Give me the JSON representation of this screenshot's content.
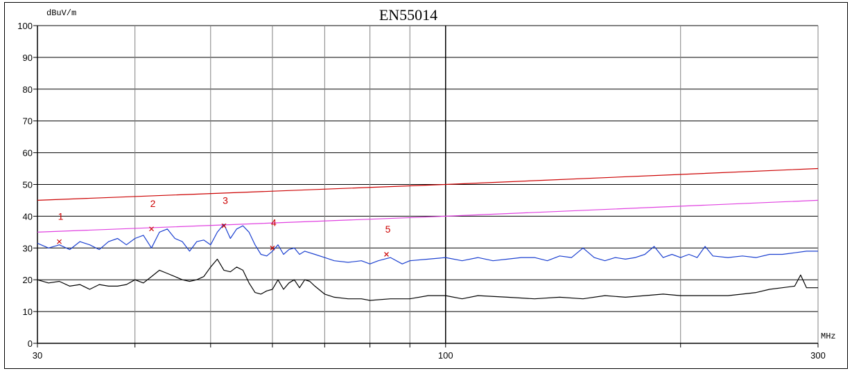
{
  "chart_data": {
    "type": "line",
    "title": "EN55014",
    "ylabel": "dBuV/m",
    "xlabel": "MHz",
    "x_scale": "log",
    "xlim": [
      30,
      300
    ],
    "ylim": [
      0,
      100
    ],
    "grid": true,
    "y_ticks": [
      0,
      10,
      20,
      30,
      40,
      50,
      60,
      70,
      80,
      90,
      100
    ],
    "y_tick_labels": [
      "0",
      "10",
      "20",
      "30",
      "40",
      "50",
      "60",
      "70",
      "80",
      "90",
      "100"
    ],
    "x_tick_labels": [
      {
        "x": 30,
        "label": "30"
      },
      {
        "x": 100,
        "label": "100"
      },
      {
        "x": 300,
        "label": "300"
      }
    ],
    "x_gridlines": [
      30,
      40,
      50,
      60,
      70,
      80,
      90,
      100,
      200,
      300
    ],
    "colors": {
      "limit": "#cc0000",
      "margin_limit": "#e040e0",
      "peak": "#1a3fd0",
      "average": "#000000",
      "marker": "#cc0000"
    },
    "series": [
      {
        "key": "limit",
        "points": [
          [
            30,
            45
          ],
          [
            100,
            50
          ],
          [
            300,
            55
          ]
        ]
      },
      {
        "key": "margin_limit",
        "points": [
          [
            30,
            35
          ],
          [
            100,
            40
          ],
          [
            300,
            45
          ]
        ]
      },
      {
        "key": "peak",
        "points": [
          [
            30,
            31.5
          ],
          [
            31,
            30
          ],
          [
            32,
            31
          ],
          [
            33,
            29.5
          ],
          [
            34,
            32
          ],
          [
            35,
            31
          ],
          [
            36,
            29.5
          ],
          [
            37,
            32
          ],
          [
            38,
            33
          ],
          [
            39,
            31
          ],
          [
            40,
            33
          ],
          [
            41,
            34
          ],
          [
            42,
            30
          ],
          [
            43,
            35
          ],
          [
            44,
            36
          ],
          [
            45,
            33
          ],
          [
            46,
            32
          ],
          [
            47,
            29
          ],
          [
            48,
            32
          ],
          [
            49,
            32.5
          ],
          [
            50,
            31
          ],
          [
            51,
            35
          ],
          [
            52,
            37.5
          ],
          [
            53,
            33
          ],
          [
            54,
            36
          ],
          [
            55,
            37
          ],
          [
            56,
            35
          ],
          [
            57,
            31
          ],
          [
            58,
            28
          ],
          [
            59,
            27.5
          ],
          [
            60,
            29
          ],
          [
            61,
            31
          ],
          [
            62,
            28
          ],
          [
            63,
            29.5
          ],
          [
            64,
            30
          ],
          [
            65,
            28
          ],
          [
            66,
            29
          ],
          [
            68,
            28
          ],
          [
            70,
            27
          ],
          [
            72,
            26
          ],
          [
            75,
            25.5
          ],
          [
            78,
            26
          ],
          [
            80,
            25
          ],
          [
            82,
            26
          ],
          [
            85,
            27
          ],
          [
            88,
            25
          ],
          [
            90,
            26
          ],
          [
            95,
            26.5
          ],
          [
            100,
            27
          ],
          [
            105,
            26
          ],
          [
            110,
            27
          ],
          [
            115,
            26
          ],
          [
            120,
            26.5
          ],
          [
            125,
            27
          ],
          [
            130,
            27
          ],
          [
            135,
            26
          ],
          [
            140,
            27.5
          ],
          [
            145,
            27
          ],
          [
            150,
            30
          ],
          [
            155,
            27
          ],
          [
            160,
            26
          ],
          [
            165,
            27
          ],
          [
            170,
            26.5
          ],
          [
            175,
            27
          ],
          [
            180,
            28
          ],
          [
            185,
            30.5
          ],
          [
            190,
            27
          ],
          [
            195,
            28
          ],
          [
            200,
            27
          ],
          [
            205,
            28
          ],
          [
            210,
            27
          ],
          [
            215,
            30.5
          ],
          [
            220,
            27.5
          ],
          [
            230,
            27
          ],
          [
            240,
            27.5
          ],
          [
            250,
            27
          ],
          [
            260,
            28
          ],
          [
            270,
            28
          ],
          [
            280,
            28.5
          ],
          [
            290,
            29
          ],
          [
            300,
            29
          ]
        ]
      },
      {
        "key": "average",
        "points": [
          [
            30,
            20
          ],
          [
            31,
            19
          ],
          [
            32,
            19.5
          ],
          [
            33,
            18
          ],
          [
            34,
            18.5
          ],
          [
            35,
            17
          ],
          [
            36,
            18.5
          ],
          [
            37,
            18
          ],
          [
            38,
            18
          ],
          [
            39,
            18.5
          ],
          [
            40,
            20
          ],
          [
            41,
            19
          ],
          [
            42,
            21
          ],
          [
            43,
            23
          ],
          [
            44,
            22
          ],
          [
            45,
            21
          ],
          [
            46,
            20
          ],
          [
            47,
            19.5
          ],
          [
            48,
            20
          ],
          [
            49,
            21
          ],
          [
            50,
            24
          ],
          [
            51,
            26.5
          ],
          [
            52,
            23
          ],
          [
            53,
            22.5
          ],
          [
            54,
            24
          ],
          [
            55,
            23
          ],
          [
            56,
            19
          ],
          [
            57,
            16
          ],
          [
            58,
            15.5
          ],
          [
            59,
            16.5
          ],
          [
            60,
            17
          ],
          [
            61,
            20
          ],
          [
            62,
            17
          ],
          [
            63,
            19
          ],
          [
            64,
            20
          ],
          [
            65,
            17.5
          ],
          [
            66,
            20
          ],
          [
            67,
            19.5
          ],
          [
            68,
            18
          ],
          [
            70,
            15.5
          ],
          [
            72,
            14.5
          ],
          [
            75,
            14
          ],
          [
            78,
            14
          ],
          [
            80,
            13.5
          ],
          [
            85,
            14
          ],
          [
            90,
            14
          ],
          [
            95,
            15
          ],
          [
            100,
            15
          ],
          [
            105,
            14
          ],
          [
            110,
            15
          ],
          [
            120,
            14.5
          ],
          [
            130,
            14
          ],
          [
            140,
            14.5
          ],
          [
            150,
            14
          ],
          [
            160,
            15
          ],
          [
            170,
            14.5
          ],
          [
            180,
            15
          ],
          [
            190,
            15.5
          ],
          [
            200,
            15
          ],
          [
            210,
            15
          ],
          [
            220,
            15
          ],
          [
            230,
            15
          ],
          [
            240,
            15.5
          ],
          [
            250,
            16
          ],
          [
            260,
            17
          ],
          [
            270,
            17.5
          ],
          [
            280,
            18
          ],
          [
            285,
            21.5
          ],
          [
            290,
            17.5
          ],
          [
            300,
            17.5
          ]
        ]
      }
    ],
    "markers": [
      {
        "label": "1",
        "x": 32,
        "y": 32
      },
      {
        "label": "2",
        "x": 42,
        "y": 36
      },
      {
        "label": "3",
        "x": 52,
        "y": 37
      },
      {
        "label": "4",
        "x": 60,
        "y": 30
      },
      {
        "label": "5",
        "x": 84,
        "y": 28
      }
    ]
  }
}
